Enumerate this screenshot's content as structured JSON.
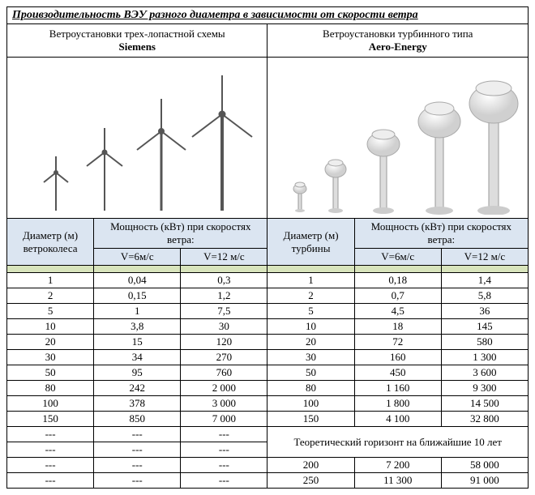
{
  "title": "Проивзодительность ВЭУ разного диаметра в зависимости от скорости ветра",
  "left_header": {
    "line1": "Ветроустановки трех-лопастной схемы",
    "brand": "Siemens"
  },
  "right_header": {
    "line1": "Ветроустановки турбинного типа",
    "brand": "Aero-Energy"
  },
  "col_headers": {
    "diameter_left": "Диаметр (м) ветроколеса",
    "power_left": "Мощность (кВт) при скоростях ветра:",
    "v6": "V=6м/с",
    "v12": "V=12 м/с",
    "diameter_right": "Диаметр (м) турбины",
    "power_right": "Мощность (кВт) при скоростях ветра:"
  },
  "rows": [
    {
      "d1": "1",
      "v6a": "0,04",
      "v12a": "0,3",
      "d2": "1",
      "v6b": "0,18",
      "v12b": "1,4"
    },
    {
      "d1": "2",
      "v6a": "0,15",
      "v12a": "1,2",
      "d2": "2",
      "v6b": "0,7",
      "v12b": "5,8"
    },
    {
      "d1": "5",
      "v6a": "1",
      "v12a": "7,5",
      "d2": "5",
      "v6b": "4,5",
      "v12b": "36"
    },
    {
      "d1": "10",
      "v6a": "3,8",
      "v12a": "30",
      "d2": "10",
      "v6b": "18",
      "v12b": "145"
    },
    {
      "d1": "20",
      "v6a": "15",
      "v12a": "120",
      "d2": "20",
      "v6b": "72",
      "v12b": "580"
    },
    {
      "d1": "30",
      "v6a": "34",
      "v12a": "270",
      "d2": "30",
      "v6b": "160",
      "v12b": "1 300"
    },
    {
      "d1": "50",
      "v6a": "95",
      "v12a": "760",
      "d2": "50",
      "v6b": "450",
      "v12b": "3 600"
    },
    {
      "d1": "80",
      "v6a": "242",
      "v12a": "2 000",
      "d2": "80",
      "v6b": "1 160",
      "v12b": "9 300"
    },
    {
      "d1": "100",
      "v6a": "378",
      "v12a": "3 000",
      "d2": "100",
      "v6b": "1 800",
      "v12b": "14 500"
    },
    {
      "d1": "150",
      "v6a": "850",
      "v12a": "7 000",
      "d2": "150",
      "v6b": "4 100",
      "v12b": "32 800"
    }
  ],
  "horizon_label": "Теоретический горизонт на ближайшие 10 лет",
  "extra_rows": [
    {
      "d": "200",
      "v6": "7 200",
      "v12": "58 000"
    },
    {
      "d": "250",
      "v6": "11 300",
      "v12": "91 000"
    }
  ],
  "dash": "---",
  "colors": {
    "header_bg": "#dbe5f1",
    "green_bg": "#d8e4bc",
    "border": "#000000",
    "turbine_fill": "#e8e8e8",
    "turbine_stroke": "#888888"
  }
}
